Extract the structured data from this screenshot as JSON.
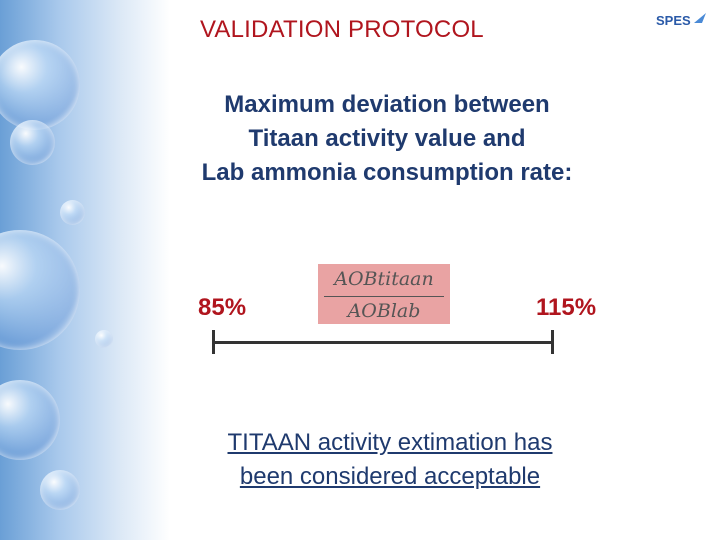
{
  "slide": {
    "title": "VALIDATION PROTOCOL",
    "logo_text": "SPES",
    "subtitle_lines": [
      "Maximum deviation between",
      "Titaan activity value and",
      "Lab ammonia consumption rate:"
    ],
    "range": {
      "low_label": "85%",
      "high_label": "115%"
    },
    "formula": {
      "numerator": "AOBtitaan",
      "denominator": "AOBlab"
    },
    "conclusion_lines": [
      "TITAAN activity extimation has",
      "been considered acceptable"
    ]
  },
  "colors": {
    "title": "#b0151e",
    "body_text": "#1f3a6e",
    "formula_bg": "#e9a3a3",
    "logo": "#2a5aa8"
  }
}
